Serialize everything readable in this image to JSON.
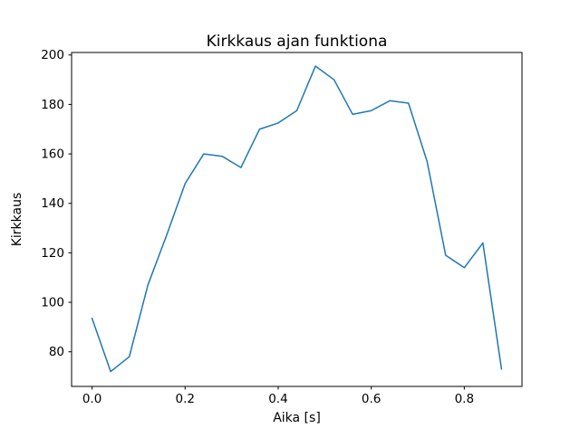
{
  "figure": {
    "background": "#ffffff"
  },
  "chart_data": {
    "type": "line",
    "title": "Kirkkaus ajan funktiona",
    "xlabel": "Aika [s]",
    "ylabel": "Kirkkaus",
    "x": [
      0.0,
      0.04,
      0.08,
      0.12,
      0.16,
      0.2,
      0.24,
      0.28,
      0.32,
      0.36,
      0.4,
      0.44,
      0.48,
      0.52,
      0.56,
      0.6,
      0.64,
      0.68,
      0.72,
      0.76,
      0.8,
      0.84,
      0.88
    ],
    "y": [
      93.5,
      72,
      78,
      107,
      127,
      148,
      160,
      159,
      154.5,
      170,
      172.5,
      177.5,
      195.5,
      190,
      176,
      177.5,
      181.5,
      180.5,
      157,
      119,
      114,
      124,
      73
    ],
    "xlim": [
      -0.044,
      0.924
    ],
    "ylim": [
      66,
      201
    ],
    "xticks": {
      "values": [
        0.0,
        0.2,
        0.4,
        0.6,
        0.8
      ],
      "labels": [
        "0.0",
        "0.2",
        "0.4",
        "0.6",
        "0.8"
      ]
    },
    "yticks": {
      "values": [
        80,
        100,
        120,
        140,
        160,
        180,
        200
      ],
      "labels": [
        "80",
        "100",
        "120",
        "140",
        "160",
        "180",
        "200"
      ]
    },
    "line_color": "#1f77b4",
    "line_width": 1.5,
    "axis_color": "#000000",
    "plot_background": "#ffffff",
    "grid": false,
    "legend": "none"
  }
}
